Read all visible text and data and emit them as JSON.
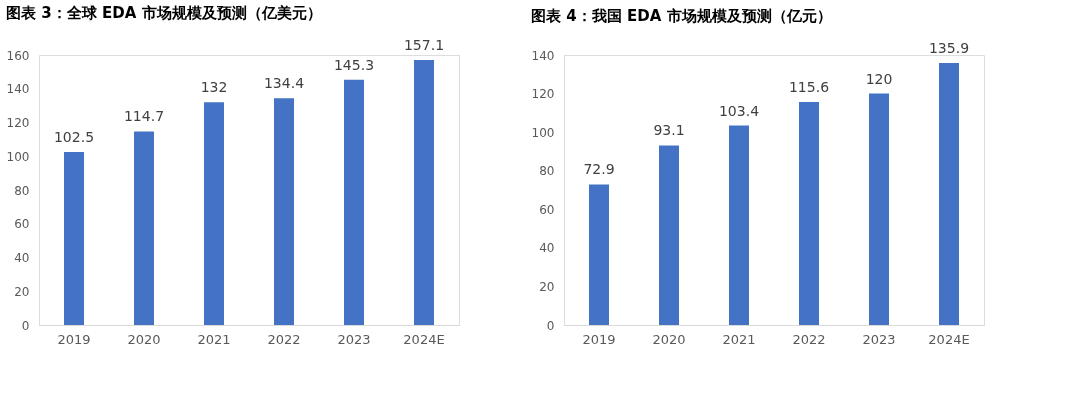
{
  "chart_data": [
    {
      "type": "bar",
      "title": "图表 3：全球 EDA 市场规模及预测（亿美元）",
      "categories": [
        "2019",
        "2020",
        "2021",
        "2022",
        "2023",
        "2024E"
      ],
      "values": [
        102.5,
        114.7,
        132,
        134.4,
        145.3,
        157.1
      ],
      "color": "#4472c4",
      "ylim": [
        0,
        160
      ],
      "yticks": [
        0,
        20,
        40,
        60,
        80,
        100,
        120,
        140,
        160
      ],
      "grid": false,
      "data_labels": true
    },
    {
      "type": "bar",
      "title": "图表 4：我国 EDA 市场规模及预测（亿元）",
      "categories": [
        "2019",
        "2020",
        "2021",
        "2022",
        "2023",
        "2024E"
      ],
      "values": [
        72.9,
        93.1,
        103.4,
        115.6,
        120,
        135.9
      ],
      "color": "#4472c4",
      "ylim": [
        0,
        140
      ],
      "yticks": [
        0,
        20,
        40,
        60,
        80,
        100,
        120,
        140
      ],
      "grid": false,
      "data_labels": true
    }
  ]
}
